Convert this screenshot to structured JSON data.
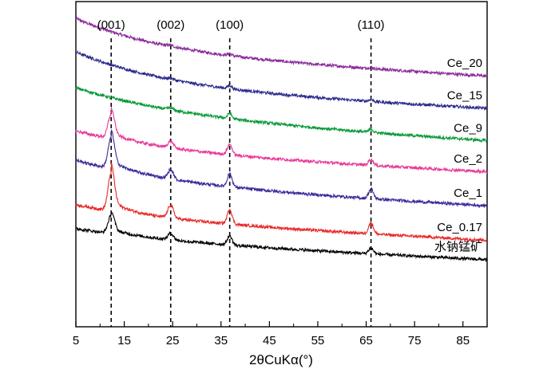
{
  "chart_data": {
    "type": "line",
    "title": "",
    "xlabel": "2θCuKα(°)",
    "ylabel": "",
    "xlim": [
      5,
      90
    ],
    "x_ticks": [
      5,
      15,
      25,
      35,
      45,
      55,
      65,
      75,
      85
    ],
    "x_tick_labels": [
      "5",
      "15",
      "25",
      "35",
      "45",
      "55",
      "65",
      "75",
      "85"
    ],
    "reference_lines": [
      {
        "label": "(001)",
        "x": 12.3
      },
      {
        "label": "(002)",
        "x": 24.6
      },
      {
        "label": "(100)",
        "x": 36.8
      },
      {
        "label": "(110)",
        "x": 66.0
      }
    ],
    "series": [
      {
        "name": "Ce_20",
        "color": "#8a2a9a",
        "baseline_start": 0.948,
        "baseline_end": 0.77,
        "decay": 0.6,
        "decay_rate": 0.22,
        "peaks": [
          {
            "x": 24.6,
            "height": 0.004,
            "width": 0.8
          },
          {
            "x": 36.8,
            "height": 0.006,
            "width": 0.6
          },
          {
            "x": 66.0,
            "height": 0.004,
            "width": 0.6
          }
        ]
      },
      {
        "name": "Ce_15",
        "color": "#2c2a8a",
        "baseline_start": 0.845,
        "baseline_end": 0.67,
        "decay": 0.65,
        "decay_rate": 0.24,
        "peaks": [
          {
            "x": 24.6,
            "height": 0.004,
            "width": 0.8
          },
          {
            "x": 36.8,
            "height": 0.01,
            "width": 0.6
          },
          {
            "x": 66.0,
            "height": 0.006,
            "width": 0.6
          }
        ]
      },
      {
        "name": "Ce_9",
        "color": "#0a9a3a",
        "baseline_start": 0.735,
        "baseline_end": 0.57,
        "decay": 0.55,
        "decay_rate": 0.28,
        "peaks": [
          {
            "x": 24.6,
            "height": 0.006,
            "width": 0.8
          },
          {
            "x": 36.8,
            "height": 0.016,
            "width": 0.6
          },
          {
            "x": 66.0,
            "height": 0.01,
            "width": 0.6
          }
        ]
      },
      {
        "name": "Ce_2",
        "color": "#e83a9a",
        "baseline_start": 0.602,
        "baseline_end": 0.475,
        "decay": 0.55,
        "decay_rate": 0.28,
        "peaks": [
          {
            "x": 12.3,
            "height": 0.075,
            "width": 0.9
          },
          {
            "x": 24.6,
            "height": 0.02,
            "width": 0.8
          },
          {
            "x": 36.8,
            "height": 0.032,
            "width": 0.7
          },
          {
            "x": 66.0,
            "height": 0.018,
            "width": 0.7
          }
        ]
      },
      {
        "name": "Ce_1",
        "color": "#3a2a9a",
        "baseline_start": 0.512,
        "baseline_end": 0.37,
        "decay": 0.55,
        "decay_rate": 0.28,
        "peaks": [
          {
            "x": 12.3,
            "height": 0.095,
            "width": 0.9
          },
          {
            "x": 24.6,
            "height": 0.028,
            "width": 0.8
          },
          {
            "x": 36.8,
            "height": 0.04,
            "width": 0.7
          },
          {
            "x": 66.0,
            "height": 0.03,
            "width": 0.7
          }
        ]
      },
      {
        "name": "Ce_0.17",
        "color": "#e82828",
        "baseline_start": 0.375,
        "baseline_end": 0.265,
        "decay": 0.45,
        "decay_rate": 0.28,
        "peaks": [
          {
            "x": 12.3,
            "height": 0.115,
            "width": 0.9
          },
          {
            "x": 24.6,
            "height": 0.04,
            "width": 0.8
          },
          {
            "x": 36.8,
            "height": 0.045,
            "width": 0.7
          },
          {
            "x": 66.0,
            "height": 0.034,
            "width": 0.7
          }
        ]
      },
      {
        "name": "水钠锰矿",
        "color": "#000000",
        "baseline_start": 0.302,
        "baseline_end": 0.205,
        "decay": 0.4,
        "decay_rate": 0.28,
        "peaks": [
          {
            "x": 12.3,
            "height": 0.055,
            "width": 0.9
          },
          {
            "x": 24.6,
            "height": 0.02,
            "width": 0.8
          },
          {
            "x": 36.8,
            "height": 0.028,
            "width": 0.7
          },
          {
            "x": 66.0,
            "height": 0.018,
            "width": 0.7
          }
        ]
      }
    ]
  }
}
